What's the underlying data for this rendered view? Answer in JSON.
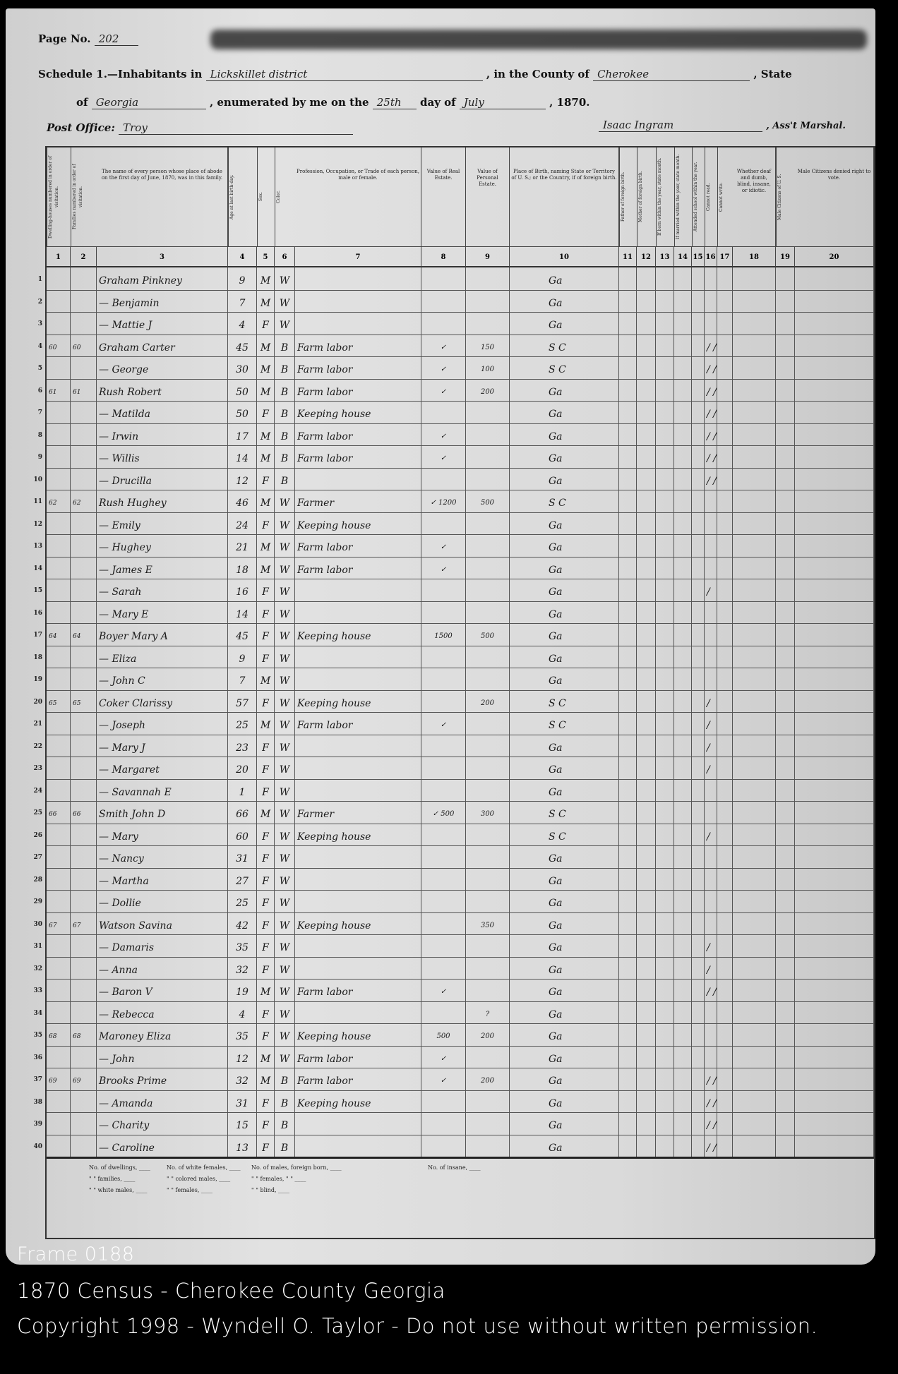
{
  "header": {
    "page_label": "Page No.",
    "page_no": "202",
    "schedule_label": "Schedule 1.—Inhabitants in",
    "district": "Lickskillet district",
    "county_label": ", in the County of",
    "county": "Cherokee",
    "state_label": ", State",
    "of_label": "of",
    "state": "Georgia",
    "enumerated_label": ", enumerated by me on the",
    "day": "25th",
    "day_of_label": "day of",
    "month": "July",
    "year": ", 1870.",
    "post_office_label": "Post Office:",
    "post_office": "Troy",
    "marshal": "Isaac Ingram",
    "marshal_label": ", Ass't Marshal."
  },
  "columns": [
    {
      "num": "1",
      "text": "Dwelling-houses numbered in order of visitation."
    },
    {
      "num": "2",
      "text": "Families numbered in order of visitation."
    },
    {
      "num": "3",
      "text": "The name of every person whose place of abode on the first day of June, 1870, was in this family."
    },
    {
      "num": "4",
      "text": "Age at last birth-day."
    },
    {
      "num": "5",
      "text": "Sex."
    },
    {
      "num": "6",
      "text": "Color."
    },
    {
      "num": "7",
      "text": "Profession, Occupation, or Trade of each person, male or female."
    },
    {
      "num": "8",
      "text": "Value of Real Estate."
    },
    {
      "num": "9",
      "text": "Value of Personal Estate."
    },
    {
      "num": "10",
      "text": "Place of Birth, naming State or Territory of U. S.; or the Country, if of foreign birth."
    },
    {
      "num": "11",
      "text": "Father of foreign birth."
    },
    {
      "num": "12",
      "text": "Mother of foreign birth."
    },
    {
      "num": "13",
      "text": "If born within the year, state month."
    },
    {
      "num": "14",
      "text": "If married within the year, state month."
    },
    {
      "num": "15",
      "text": "Attended school within the year."
    },
    {
      "num": "16",
      "text": "Cannot read."
    },
    {
      "num": "17",
      "text": "Cannot write."
    },
    {
      "num": "18",
      "text": "Whether deaf and dumb, blind, insane, or idiotic."
    },
    {
      "num": "19",
      "text": "Male Citizens of U. S."
    },
    {
      "num": "20",
      "text": "Male Citizens denied right to vote."
    }
  ],
  "rows": [
    [
      "",
      "",
      "Graham Pinkney",
      "9",
      "M",
      "W",
      "",
      "",
      "",
      "Ga",
      ""
    ],
    [
      "",
      "",
      "— Benjamin",
      "7",
      "M",
      "W",
      "",
      "",
      "",
      "Ga",
      ""
    ],
    [
      "",
      "",
      "— Mattie J",
      "4",
      "F",
      "W",
      "",
      "",
      "",
      "Ga",
      ""
    ],
    [
      "60",
      "60",
      "Graham Carter",
      "45",
      "M",
      "B",
      "Farm labor",
      "✓",
      "150",
      "S C",
      "/ /"
    ],
    [
      "",
      "",
      "— George",
      "30",
      "M",
      "B",
      "Farm labor",
      "✓",
      "100",
      "S C",
      "/ /"
    ],
    [
      "61",
      "61",
      "Rush Robert",
      "50",
      "M",
      "B",
      "Farm labor",
      "✓",
      "200",
      "Ga",
      "/ /"
    ],
    [
      "",
      "",
      "— Matilda",
      "50",
      "F",
      "B",
      "Keeping house",
      "",
      "",
      "Ga",
      "/ /"
    ],
    [
      "",
      "",
      "— Irwin",
      "17",
      "M",
      "B",
      "Farm labor",
      "✓",
      "",
      "Ga",
      "/ /"
    ],
    [
      "",
      "",
      "— Willis",
      "14",
      "M",
      "B",
      "Farm labor",
      "✓",
      "",
      "Ga",
      "/ /"
    ],
    [
      "",
      "",
      "— Drucilla",
      "12",
      "F",
      "B",
      "",
      "",
      "",
      "Ga",
      "/ /"
    ],
    [
      "62",
      "62",
      "Rush Hughey",
      "46",
      "M",
      "W",
      "Farmer",
      "✓ 1200",
      "500",
      "S C",
      ""
    ],
    [
      "",
      "",
      "— Emily",
      "24",
      "F",
      "W",
      "Keeping house",
      "",
      "",
      "Ga",
      ""
    ],
    [
      "",
      "",
      "— Hughey",
      "21",
      "M",
      "W",
      "Farm labor",
      "✓",
      "",
      "Ga",
      ""
    ],
    [
      "",
      "",
      "— James E",
      "18",
      "M",
      "W",
      "Farm labor",
      "✓",
      "",
      "Ga",
      ""
    ],
    [
      "",
      "",
      "— Sarah",
      "16",
      "F",
      "W",
      "",
      "",
      "",
      "Ga",
      "/"
    ],
    [
      "",
      "",
      "— Mary E",
      "14",
      "F",
      "W",
      "",
      "",
      "",
      "Ga",
      ""
    ],
    [
      "64",
      "64",
      "Boyer Mary A",
      "45",
      "F",
      "W",
      "Keeping house",
      "1500",
      "500",
      "Ga",
      ""
    ],
    [
      "",
      "",
      "— Eliza",
      "9",
      "F",
      "W",
      "",
      "",
      "",
      "Ga",
      ""
    ],
    [
      "",
      "",
      "— John C",
      "7",
      "M",
      "W",
      "",
      "",
      "",
      "Ga",
      ""
    ],
    [
      "65",
      "65",
      "Coker Clarissy",
      "57",
      "F",
      "W",
      "Keeping house",
      "",
      "200",
      "S C",
      "/"
    ],
    [
      "",
      "",
      "— Joseph",
      "25",
      "M",
      "W",
      "Farm labor",
      "✓",
      "",
      "S C",
      "/"
    ],
    [
      "",
      "",
      "— Mary J",
      "23",
      "F",
      "W",
      "",
      "",
      "",
      "Ga",
      "/"
    ],
    [
      "",
      "",
      "— Margaret",
      "20",
      "F",
      "W",
      "",
      "",
      "",
      "Ga",
      "/"
    ],
    [
      "",
      "",
      "— Savannah E",
      "1",
      "F",
      "W",
      "",
      "",
      "",
      "Ga",
      ""
    ],
    [
      "66",
      "66",
      "Smith John D",
      "66",
      "M",
      "W",
      "Farmer",
      "✓ 500",
      "300",
      "S C",
      ""
    ],
    [
      "",
      "",
      "— Mary",
      "60",
      "F",
      "W",
      "Keeping house",
      "",
      "",
      "S C",
      "/"
    ],
    [
      "",
      "",
      "— Nancy",
      "31",
      "F",
      "W",
      "",
      "",
      "",
      "Ga",
      ""
    ],
    [
      "",
      "",
      "— Martha",
      "27",
      "F",
      "W",
      "",
      "",
      "",
      "Ga",
      ""
    ],
    [
      "",
      "",
      "— Dollie",
      "25",
      "F",
      "W",
      "",
      "",
      "",
      "Ga",
      ""
    ],
    [
      "67",
      "67",
      "Watson Savina",
      "42",
      "F",
      "W",
      "Keeping house",
      "",
      "350",
      "Ga",
      ""
    ],
    [
      "",
      "",
      "— Damaris",
      "35",
      "F",
      "W",
      "",
      "",
      "",
      "Ga",
      "/"
    ],
    [
      "",
      "",
      "— Anna",
      "32",
      "F",
      "W",
      "",
      "",
      "",
      "Ga",
      "/"
    ],
    [
      "",
      "",
      "— Baron V",
      "19",
      "M",
      "W",
      "Farm labor",
      "✓",
      "",
      "Ga",
      "/ /"
    ],
    [
      "",
      "",
      "— Rebecca",
      "4",
      "F",
      "W",
      "",
      "",
      "?",
      "Ga",
      ""
    ],
    [
      "68",
      "68",
      "Maroney Eliza",
      "35",
      "F",
      "W",
      "Keeping house",
      "500",
      "200",
      "Ga",
      ""
    ],
    [
      "",
      "",
      "— John",
      "12",
      "M",
      "W",
      "Farm labor",
      "✓",
      "",
      "Ga",
      ""
    ],
    [
      "69",
      "69",
      "Brooks Prime",
      "32",
      "M",
      "B",
      "Farm labor",
      "✓",
      "200",
      "Ga",
      "/ /"
    ],
    [
      "",
      "",
      "— Amanda",
      "31",
      "F",
      "B",
      "Keeping house",
      "",
      "",
      "Ga",
      "/ /"
    ],
    [
      "",
      "",
      "— Charity",
      "15",
      "F",
      "B",
      "",
      "",
      "",
      "Ga",
      "/ /"
    ],
    [
      "",
      "",
      "— Caroline",
      "13",
      "F",
      "B",
      "",
      "",
      "",
      "Ga",
      "/ /"
    ]
  ],
  "footer": {
    "dwellings": "No. of dwellings, ____",
    "families": "\" \" families, ____",
    "white_males": "\" \" white males, ____",
    "white_females": "No. of white females, ____",
    "colored_males": "\" \" colored males, ____",
    "females": "\" \" females, ____",
    "foreign_males": "No. of males, foreign born, ____",
    "foreign_females": "\" \" females, \" \" ____",
    "blind": "\" \" blind, ____",
    "insane": "No. of insane, ____"
  },
  "captions": {
    "frame": "Frame 0188",
    "title": "1870 Census - Cherokee County Georgia",
    "copyright": "Copyright 1998 - Wyndell O. Taylor - Do not use without written permission."
  }
}
